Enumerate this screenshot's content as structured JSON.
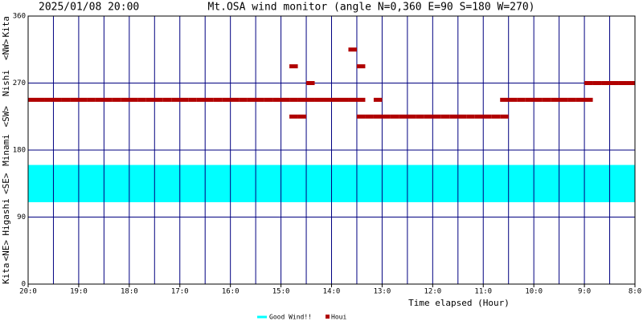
{
  "chart_data": {
    "type": "scatter",
    "timestamp": "2025/01/08 20:00",
    "title": "Mt.OSA wind monitor (angle N=0,360 E=90 S=180 W=270)",
    "x_label": "Time elapsed (Hour)",
    "y_side_labels": [
      "Kita",
      "<NE>",
      "Higashi",
      "<SE>",
      "Minami",
      "<SW>",
      "Nishi",
      "<NW>",
      "Kita"
    ],
    "xlim": [
      0,
      720
    ],
    "xticks": [
      {
        "value": 0,
        "label": "20:0"
      },
      {
        "value": 60,
        "label": "19:0"
      },
      {
        "value": 120,
        "label": "18:0"
      },
      {
        "value": 180,
        "label": "17:0"
      },
      {
        "value": 240,
        "label": "16:0"
      },
      {
        "value": 300,
        "label": "15:0"
      },
      {
        "value": 360,
        "label": "14:0"
      },
      {
        "value": 420,
        "label": "13:0"
      },
      {
        "value": 480,
        "label": "12:0"
      },
      {
        "value": 540,
        "label": "11:0"
      },
      {
        "value": 600,
        "label": "10:0"
      },
      {
        "value": 660,
        "label": "9:0"
      },
      {
        "value": 720,
        "label": "8:0"
      }
    ],
    "minor_xticks": [
      30,
      90,
      150,
      210,
      270,
      330,
      390,
      450,
      510,
      570,
      630,
      690
    ],
    "ylim": [
      0,
      360
    ],
    "yticks": [
      0,
      90,
      180,
      270,
      360
    ],
    "grid": true,
    "series": [
      {
        "name": "Good Wind!!",
        "color": "#00ffff",
        "range": [
          110,
          160
        ]
      },
      {
        "name": "Houi",
        "color": "#b00000",
        "x": [
          0,
          10,
          20,
          30,
          40,
          50,
          60,
          70,
          80,
          90,
          100,
          110,
          120,
          130,
          140,
          150,
          160,
          170,
          180,
          190,
          200,
          210,
          220,
          230,
          240,
          250,
          260,
          270,
          280,
          290,
          300,
          310,
          310,
          310,
          320,
          320,
          330,
          330,
          340,
          350,
          360,
          370,
          380,
          380,
          390,
          390,
          390,
          400,
          410,
          410,
          420,
          430,
          440,
          450,
          460,
          470,
          480,
          490,
          500,
          510,
          520,
          530,
          540,
          550,
          560,
          560,
          570,
          580,
          590,
          600,
          610,
          620,
          630,
          640,
          650,
          660,
          660,
          670,
          680,
          690,
          700,
          710,
          720
        ],
        "values": [
          247.5,
          247.5,
          247.5,
          247.5,
          247.5,
          247.5,
          247.5,
          247.5,
          247.5,
          247.5,
          247.5,
          247.5,
          247.5,
          247.5,
          247.5,
          247.5,
          247.5,
          247.5,
          247.5,
          247.5,
          247.5,
          247.5,
          247.5,
          247.5,
          247.5,
          247.5,
          247.5,
          247.5,
          247.5,
          247.5,
          247.5,
          247.5,
          225,
          292.5,
          247.5,
          225,
          270,
          247.5,
          247.5,
          247.5,
          247.5,
          247.5,
          247.5,
          315,
          247.5,
          292.5,
          225,
          225,
          225,
          247.5,
          225,
          225,
          225,
          225,
          225,
          225,
          225,
          225,
          225,
          225,
          225,
          225,
          225,
          225,
          225,
          247.5,
          247.5,
          247.5,
          247.5,
          247.5,
          247.5,
          247.5,
          247.5,
          247.5,
          247.5,
          247.5,
          270,
          270,
          270,
          270,
          270,
          270,
          270
        ]
      }
    ]
  }
}
